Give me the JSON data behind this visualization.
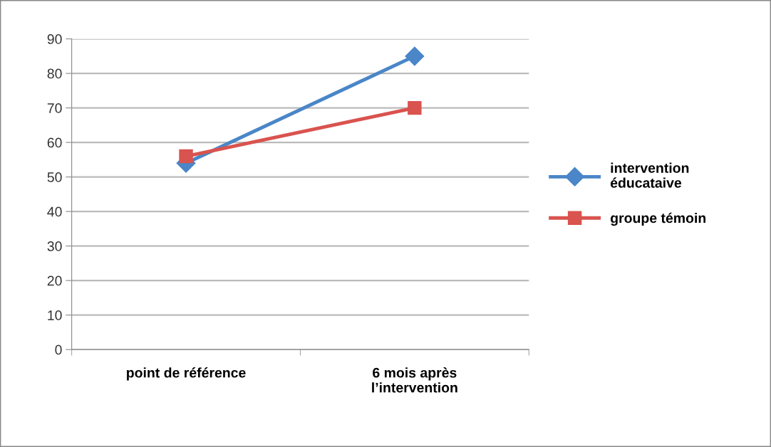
{
  "chart_data": {
    "type": "line",
    "categories": [
      "point de référence",
      "6 mois après\nl’intervention"
    ],
    "series": [
      {
        "name": "intervention\néducataive",
        "color": "#4a86c8",
        "values": [
          54,
          85
        ],
        "marker": "diamond"
      },
      {
        "name": "groupe témoin",
        "color": "#d9534f",
        "values": [
          56,
          70
        ],
        "marker": "square"
      }
    ],
    "ylim": [
      0,
      90
    ],
    "yticks": [
      0,
      10,
      20,
      30,
      40,
      50,
      60,
      70,
      80,
      90
    ],
    "grid": "y",
    "legend": "right",
    "line_style": "solid"
  }
}
